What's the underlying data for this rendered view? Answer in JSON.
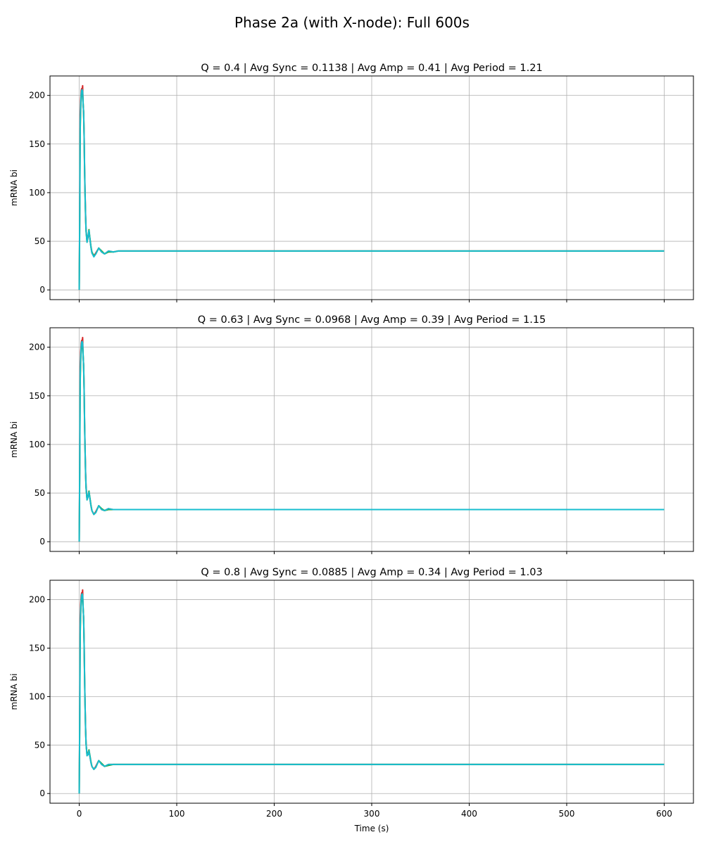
{
  "figure": {
    "title": "Phase 2a (with X-node): Full 600s"
  },
  "chart_data": [
    {
      "type": "line",
      "title": "Q = 0.4 | Avg Sync = 0.1138 | Avg Amp = 0.41 | Avg Period = 1.21",
      "xlabel": "",
      "ylabel": "mRNA bi",
      "xlim": [
        -30,
        630
      ],
      "ylim": [
        -10,
        220
      ],
      "xticks": [
        0,
        100,
        200,
        300,
        400,
        500,
        600
      ],
      "xtick_labels_visible": false,
      "yticks": [
        0,
        50,
        100,
        150,
        200
      ],
      "grid": true,
      "series": [
        {
          "color": "#d62728",
          "x": [
            0,
            0.5,
            1,
            1.5,
            2,
            2.5,
            3,
            3.5,
            4,
            4.5,
            5,
            5.5,
            6,
            6.5,
            7,
            8,
            9,
            10,
            11,
            12,
            13,
            15,
            17,
            20,
            23,
            26,
            30,
            35,
            40,
            100,
            600
          ],
          "y": [
            0,
            85,
            180,
            195,
            205,
            207,
            206,
            210,
            190,
            183,
            160,
            125,
            100,
            78,
            62,
            50,
            54,
            60,
            52,
            44,
            38,
            35,
            38,
            43,
            39,
            37,
            40,
            39,
            40,
            40,
            40
          ]
        },
        {
          "color": "#2ca02c",
          "x": [
            0,
            0.5,
            1,
            1.5,
            2,
            2.5,
            3,
            3.5,
            4,
            4.5,
            5,
            5.5,
            6,
            6.5,
            7,
            8,
            9,
            10,
            11,
            12,
            13,
            15,
            17,
            20,
            23,
            26,
            30,
            35,
            40,
            100,
            600
          ],
          "y": [
            0,
            70,
            165,
            185,
            198,
            204,
            205,
            203,
            192,
            182,
            158,
            122,
            96,
            75,
            60,
            49,
            55,
            62,
            53,
            45,
            39,
            35,
            37,
            43,
            40,
            37,
            39,
            39,
            40,
            40,
            40
          ]
        },
        {
          "color": "#17becf",
          "x": [
            0,
            0.5,
            1,
            1.5,
            2,
            2.5,
            3,
            3.5,
            4,
            4.5,
            5,
            5.5,
            6,
            6.5,
            7,
            8,
            9,
            10,
            11,
            12,
            13,
            15,
            17,
            20,
            23,
            26,
            30,
            35,
            40,
            100,
            600
          ],
          "y": [
            0,
            78,
            172,
            190,
            201,
            205,
            206,
            204,
            191,
            183,
            159,
            124,
            98,
            77,
            61,
            49,
            55,
            61,
            52,
            44,
            38,
            34,
            37,
            43,
            39,
            37,
            40,
            39,
            40,
            40,
            40
          ]
        }
      ]
    },
    {
      "type": "line",
      "title": "Q = 0.63 | Avg Sync = 0.0968 | Avg Amp = 0.39 | Avg Period = 1.15",
      "xlabel": "",
      "ylabel": "mRNA bi",
      "xlim": [
        -30,
        630
      ],
      "ylim": [
        -10,
        220
      ],
      "xticks": [
        0,
        100,
        200,
        300,
        400,
        500,
        600
      ],
      "xtick_labels_visible": false,
      "yticks": [
        0,
        50,
        100,
        150,
        200
      ],
      "grid": true,
      "series": [
        {
          "color": "#d62728",
          "x": [
            0,
            0.5,
            1,
            1.5,
            2,
            2.5,
            3,
            3.5,
            4,
            4.5,
            5,
            5.5,
            6,
            6.5,
            7,
            8,
            9,
            10,
            11,
            12,
            13,
            15,
            17,
            20,
            23,
            26,
            30,
            35,
            40,
            100,
            600
          ],
          "y": [
            0,
            85,
            180,
            195,
            204,
            207,
            206,
            210,
            190,
            182,
            158,
            122,
            96,
            72,
            57,
            44,
            46,
            51,
            44,
            37,
            32,
            28,
            31,
            37,
            33,
            32,
            34,
            33,
            33,
            33,
            33
          ]
        },
        {
          "color": "#2ca02c",
          "x": [
            0,
            0.5,
            1,
            1.5,
            2,
            2.5,
            3,
            3.5,
            4,
            4.5,
            5,
            5.5,
            6,
            6.5,
            7,
            8,
            9,
            10,
            11,
            12,
            13,
            15,
            17,
            20,
            23,
            26,
            30,
            35,
            40,
            100,
            600
          ],
          "y": [
            0,
            70,
            165,
            185,
            197,
            203,
            205,
            203,
            192,
            180,
            156,
            120,
            93,
            70,
            55,
            43,
            47,
            52,
            45,
            38,
            32,
            28,
            30,
            37,
            34,
            32,
            33,
            33,
            33,
            33,
            33
          ]
        },
        {
          "color": "#17becf",
          "x": [
            0,
            0.5,
            1,
            1.5,
            2,
            2.5,
            3,
            3.5,
            4,
            4.5,
            5,
            5.5,
            6,
            6.5,
            7,
            8,
            9,
            10,
            11,
            12,
            13,
            15,
            17,
            20,
            23,
            26,
            30,
            35,
            40,
            100,
            600
          ],
          "y": [
            0,
            78,
            172,
            190,
            200,
            205,
            206,
            204,
            191,
            181,
            157,
            121,
            95,
            71,
            56,
            43,
            46,
            51,
            44,
            37,
            32,
            28,
            30,
            37,
            33,
            32,
            34,
            33,
            33,
            33,
            33
          ]
        }
      ]
    },
    {
      "type": "line",
      "title": "Q = 0.8 | Avg Sync = 0.0885 | Avg Amp = 0.34 | Avg Period = 1.03",
      "xlabel": "Time (s)",
      "ylabel": "mRNA bi",
      "xlim": [
        -30,
        630
      ],
      "ylim": [
        -10,
        220
      ],
      "xticks": [
        0,
        100,
        200,
        300,
        400,
        500,
        600
      ],
      "xtick_labels_visible": true,
      "yticks": [
        0,
        50,
        100,
        150,
        200
      ],
      "grid": true,
      "series": [
        {
          "color": "#d62728",
          "x": [
            0,
            0.5,
            1,
            1.5,
            2,
            2.5,
            3,
            3.5,
            4,
            4.5,
            5,
            5.5,
            6,
            6.5,
            7,
            8,
            9,
            10,
            11,
            12,
            13,
            15,
            17,
            20,
            23,
            26,
            30,
            35,
            40,
            100,
            600
          ],
          "y": [
            0,
            85,
            180,
            195,
            204,
            207,
            206,
            210,
            190,
            182,
            156,
            120,
            92,
            68,
            52,
            40,
            40,
            44,
            38,
            32,
            28,
            25,
            28,
            34,
            30,
            28,
            30,
            30,
            30,
            30,
            30
          ]
        },
        {
          "color": "#2ca02c",
          "x": [
            0,
            0.5,
            1,
            1.5,
            2,
            2.5,
            3,
            3.5,
            4,
            4.5,
            5,
            5.5,
            6,
            6.5,
            7,
            8,
            9,
            10,
            11,
            12,
            13,
            15,
            17,
            20,
            23,
            26,
            30,
            35,
            40,
            100,
            600
          ],
          "y": [
            0,
            70,
            165,
            185,
            197,
            203,
            205,
            203,
            192,
            180,
            154,
            118,
            90,
            66,
            51,
            39,
            41,
            45,
            39,
            33,
            28,
            25,
            27,
            34,
            31,
            28,
            29,
            30,
            30,
            30,
            30
          ]
        },
        {
          "color": "#17becf",
          "x": [
            0,
            0.5,
            1,
            1.5,
            2,
            2.5,
            3,
            3.5,
            4,
            4.5,
            5,
            5.5,
            6,
            6.5,
            7,
            8,
            9,
            10,
            11,
            12,
            13,
            15,
            17,
            20,
            23,
            26,
            30,
            35,
            40,
            100,
            600
          ],
          "y": [
            0,
            78,
            172,
            190,
            200,
            205,
            206,
            204,
            191,
            181,
            155,
            119,
            91,
            67,
            51,
            39,
            40,
            44,
            38,
            32,
            28,
            25,
            27,
            34,
            30,
            28,
            30,
            30,
            30,
            30,
            30
          ]
        }
      ]
    }
  ]
}
